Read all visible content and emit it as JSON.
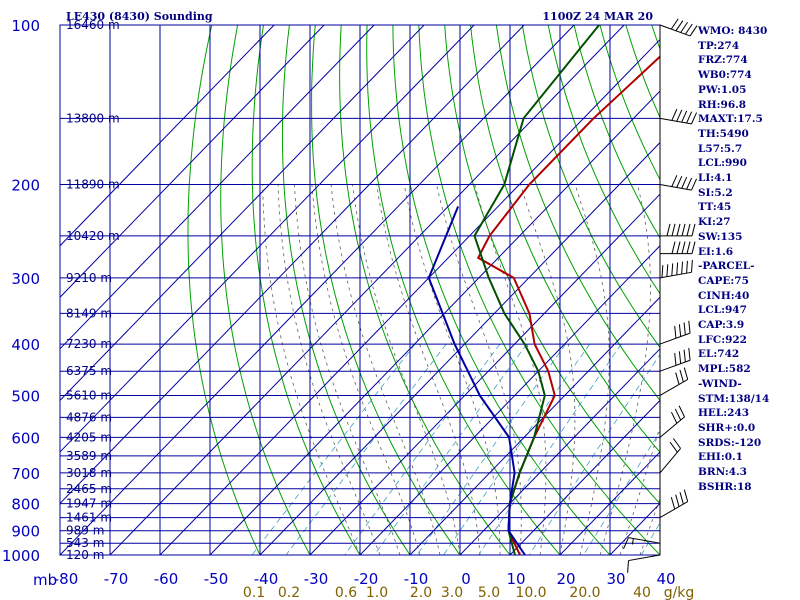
{
  "chart_data": {
    "type": "line",
    "title": "LE430 (8430) Sounding",
    "valid_time": "1100Z 24 MAR 20",
    "yaxis_unit": "mb",
    "pressure_ticks": [
      100,
      200,
      300,
      400,
      500,
      600,
      700,
      800,
      900,
      1000
    ],
    "pressure_range": [
      100,
      1000
    ],
    "yscale": "log",
    "temperature_ticks": [
      -80,
      -70,
      -60,
      -50,
      -40,
      -30,
      -20,
      -10,
      0,
      10,
      20,
      30,
      40
    ],
    "temperature_tick_labels": [
      "-80",
      "-70",
      "-60",
      "-50",
      "-40",
      "-30",
      "-20",
      "-10",
      "0",
      "10",
      "20",
      "30",
      "40"
    ],
    "mixing_ratio_labels": [
      "0.1",
      "0.2",
      "0.6",
      "1.0",
      "2.0",
      "3.0",
      "5.0",
      "10.0",
      "20.0",
      "40"
    ],
    "mixing_ratio_unit": "g/kg",
    "mixing_ratio_values": [
      0.1,
      0.2,
      0.6,
      1.0,
      2.0,
      3.0,
      5.0,
      10.0,
      20.0,
      40.0
    ],
    "height_labels": [
      {
        "p": 100,
        "label": "16460 m"
      },
      {
        "p": 150,
        "label": "13800 m"
      },
      {
        "p": 200,
        "label": "11890 m"
      },
      {
        "p": 250,
        "label": "10420 m"
      },
      {
        "p": 300,
        "label": "9210 m"
      },
      {
        "p": 350,
        "label": "8149 m"
      },
      {
        "p": 400,
        "label": "7230 m"
      },
      {
        "p": 450,
        "label": "6375 m"
      },
      {
        "p": 500,
        "label": "5610 m"
      },
      {
        "p": 550,
        "label": "4876 m"
      },
      {
        "p": 600,
        "label": "4205 m"
      },
      {
        "p": 650,
        "label": "3589 m"
      },
      {
        "p": 700,
        "label": "3018 m"
      },
      {
        "p": 750,
        "label": "2465 m"
      },
      {
        "p": 800,
        "label": "1947 m"
      },
      {
        "p": 850,
        "label": "1461 m"
      },
      {
        "p": 900,
        "label": "989 m"
      },
      {
        "p": 950,
        "label": "543 m"
      },
      {
        "p": 1000,
        "label": "120 m"
      }
    ],
    "series": [
      {
        "color": "#b00000",
        "points": [
          [
            100,
            -56
          ],
          [
            150,
            -58
          ],
          [
            200,
            -58
          ],
          [
            250,
            -56
          ],
          [
            275,
            -54
          ],
          [
            300,
            -43
          ],
          [
            350,
            -33
          ],
          [
            400,
            -26
          ],
          [
            450,
            -18
          ],
          [
            500,
            -12
          ],
          [
            600,
            -8
          ],
          [
            700,
            -4
          ],
          [
            800,
            0
          ],
          [
            900,
            5
          ],
          [
            1000,
            12
          ]
        ]
      },
      {
        "color": "#005000",
        "points": [
          [
            100,
            -75
          ],
          [
            150,
            -72
          ],
          [
            200,
            -63
          ],
          [
            250,
            -59
          ],
          [
            300,
            -48
          ],
          [
            350,
            -38
          ],
          [
            400,
            -28
          ],
          [
            450,
            -20
          ],
          [
            500,
            -14
          ],
          [
            600,
            -8
          ],
          [
            700,
            -4
          ],
          [
            800,
            0
          ],
          [
            900,
            5
          ],
          [
            1000,
            11
          ]
        ]
      },
      {
        "color": "#0000a0",
        "points": [
          [
            220,
            -68
          ],
          [
            300,
            -60
          ],
          [
            400,
            -42
          ],
          [
            500,
            -27
          ],
          [
            600,
            -13
          ],
          [
            700,
            -5
          ],
          [
            800,
            0
          ],
          [
            900,
            5
          ],
          [
            1000,
            13
          ]
        ]
      }
    ],
    "wind_barbs": [
      {
        "p": 100,
        "dir": 290,
        "speed": 50
      },
      {
        "p": 150,
        "dir": 280,
        "speed": 50
      },
      {
        "p": 200,
        "dir": 280,
        "speed": 50
      },
      {
        "p": 250,
        "dir": 270,
        "speed": 60
      },
      {
        "p": 270,
        "dir": 270,
        "speed": 50
      },
      {
        "p": 300,
        "dir": 260,
        "speed": 70
      },
      {
        "p": 400,
        "dir": 250,
        "speed": 40
      },
      {
        "p": 450,
        "dir": 250,
        "speed": 40
      },
      {
        "p": 500,
        "dir": 240,
        "speed": 30
      },
      {
        "p": 600,
        "dir": 230,
        "speed": 30
      },
      {
        "p": 700,
        "dir": 220,
        "speed": 20
      },
      {
        "p": 850,
        "dir": 240,
        "speed": 40
      },
      {
        "p": 950,
        "dir": 100,
        "speed": 15
      },
      {
        "p": 1000,
        "dir": 80,
        "speed": 10
      }
    ],
    "colors": {
      "isobar": "#0000a0",
      "isotherm": "#0000a0",
      "dry_adiabat": "#00a000",
      "moist_adiabat": "#606060",
      "mixing_ratio": "#40a0c0",
      "wind": "#000000"
    },
    "grid": true
  },
  "stats": [
    "WMO: 8430",
    "TP:274",
    "FRZ:774",
    "WB0:774",
    "PW:1.05",
    "RH:96.8",
    "MAXT:17.5",
    "TH:5490",
    "L57:5.7",
    "LCL:990",
    "LI:4.1",
    "SI:5.2",
    "TT:45",
    "KI:27",
    "SW:135",
    "EI:1.6",
    "-PARCEL-",
    "CAPE:75",
    "CINH:40",
    "LCL:947",
    "CAP:3.9",
    "LFC:922",
    "EL:742",
    "MPL:582",
    "-WIND-",
    "STM:138/14",
    "HEL:243",
    "SHR+:0.0",
    "SRDS:-120",
    "EHI:0.1",
    "BRN:4.3",
    "BSHR:18"
  ]
}
